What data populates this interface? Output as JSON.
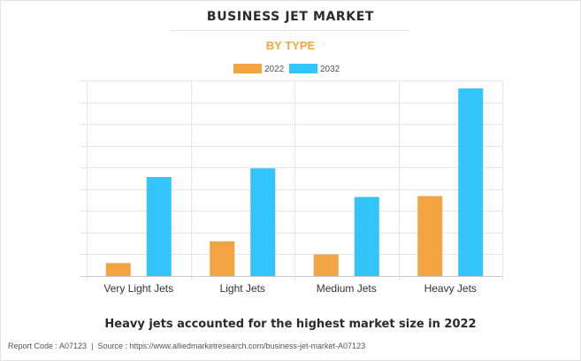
{
  "header": {
    "title": "BUSINESS JET MARKET",
    "subtitle": "BY TYPE"
  },
  "caption": "Heavy jets accounted for the highest market size in 2022",
  "footer": {
    "report_code": "Report Code : A07123",
    "separator": "|",
    "source": "Source : https://www.alliedmarketresearch.com/business-jet-market-A07123"
  },
  "colors": {
    "series_2022": "#f2a443",
    "series_2032": "#33c4fb",
    "grid": "#e6e6e6",
    "axis": "#cccccc"
  },
  "chart_data": {
    "type": "bar",
    "title": "BUSINESS JET MARKET",
    "subtitle": "BY TYPE",
    "xlabel": "",
    "ylabel": "",
    "categories": [
      "Very Light Jets",
      "Light Jets",
      "Medium Jets",
      "Heavy Jets"
    ],
    "series": [
      {
        "name": "2022",
        "color": "#f2a443",
        "values": [
          1.5,
          4.0,
          2.5,
          9.2
        ]
      },
      {
        "name": "2032",
        "color": "#33c4fb",
        "values": [
          11.4,
          12.4,
          9.1,
          21.6
        ]
      }
    ],
    "ylim": [
      0,
      22.5
    ],
    "y_grid_step": 2.5,
    "y_tick_labels_shown": false,
    "grid": true,
    "legend_position": "top-center"
  }
}
